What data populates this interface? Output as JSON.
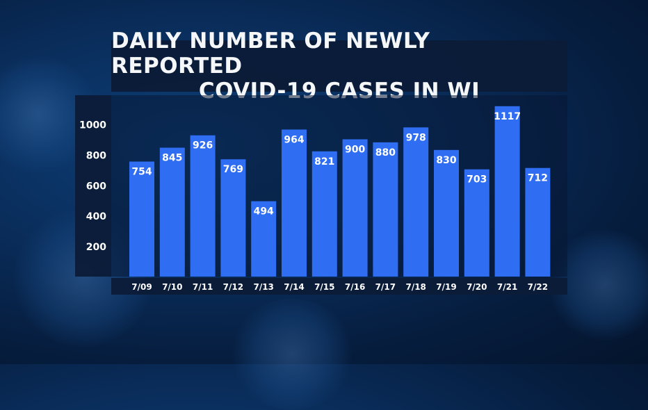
{
  "title": {
    "line1": "DAILY NUMBER OF NEWLY REPORTED",
    "line2": "COVID-19 CASES IN WI"
  },
  "chart_data": {
    "type": "bar",
    "categories": [
      "7/09",
      "7/10",
      "7/11",
      "7/12",
      "7/13",
      "7/14",
      "7/15",
      "7/16",
      "7/17",
      "7/18",
      "7/19",
      "7/20",
      "7/21",
      "7/22"
    ],
    "values": [
      754,
      845,
      926,
      769,
      494,
      964,
      821,
      900,
      880,
      978,
      830,
      703,
      1117,
      712
    ],
    "yticks": [
      200,
      400,
      600,
      800,
      1000
    ],
    "ylim": [
      0,
      1200
    ],
    "grid": false,
    "bar_color": "#2f6df2",
    "data_labels": true
  }
}
